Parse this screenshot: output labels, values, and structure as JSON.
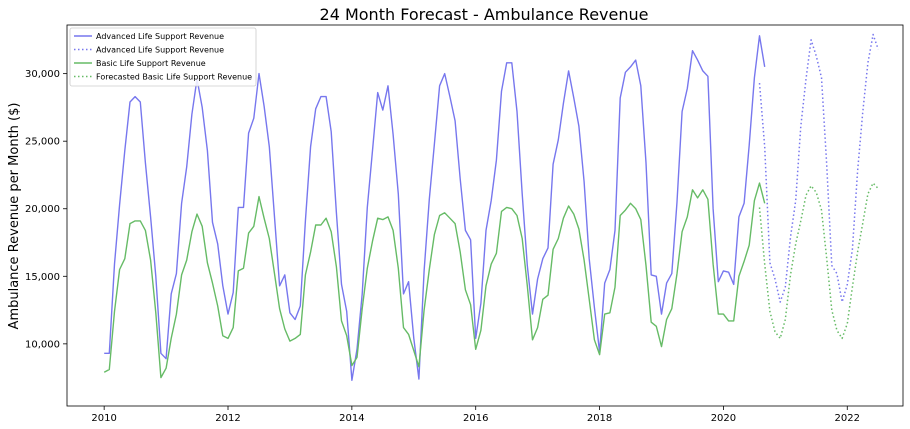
{
  "chart_data": {
    "type": "line",
    "title": "24 Month Forecast - Ambulance Revenue",
    "xlabel": "",
    "ylabel": "Ambulance Revenue per Month ($)",
    "xlim": [
      2009.4,
      2022.9
    ],
    "ylim": [
      5400,
      33600
    ],
    "x_ticks": [
      2010,
      2012,
      2014,
      2016,
      2018,
      2020,
      2022
    ],
    "x_tick_labels": [
      "2010",
      "2012",
      "2014",
      "2016",
      "2018",
      "2020",
      "2022"
    ],
    "y_ticks": [
      10000,
      15000,
      20000,
      25000,
      30000
    ],
    "y_tick_labels": [
      "10,000",
      "15,000",
      "20,000",
      "25,000",
      "30,000"
    ],
    "grid": false,
    "legend_position": "top-left",
    "series": [
      {
        "name": "Advanced Life Support Revenue",
        "color": "#7777ee",
        "style": "solid",
        "x_start": "2010-01",
        "values": [
          9300,
          9300,
          15900,
          20300,
          24300,
          27900,
          28300,
          27900,
          23400,
          19400,
          15000,
          9300,
          8900,
          13700,
          15200,
          20400,
          23100,
          27000,
          29600,
          27500,
          24300,
          19000,
          17400,
          14300,
          12200,
          13800,
          20100,
          20100,
          25600,
          26700,
          30000,
          27600,
          24600,
          19400,
          14300,
          15100,
          12300,
          11800,
          12800,
          19100,
          24600,
          27400,
          28300,
          28300,
          25700,
          19700,
          14400,
          12400,
          7300,
          9600,
          13700,
          20100,
          24300,
          28600,
          27300,
          29100,
          25500,
          21100,
          13700,
          14600,
          10400,
          7400,
          15400,
          20700,
          24800,
          29100,
          30000,
          28300,
          26500,
          22200,
          18400,
          17700,
          10400,
          13000,
          18400,
          20600,
          23600,
          28700,
          30800,
          30800,
          27200,
          21100,
          15800,
          12200,
          14800,
          16300,
          17100,
          23300,
          25100,
          27800,
          30200,
          28200,
          26100,
          22000,
          16300,
          12700,
          9400,
          14500,
          15500,
          18400,
          28200,
          30100,
          30500,
          31000,
          29100,
          23400,
          15100,
          15000,
          12200,
          14500,
          15200,
          20500,
          27200,
          28900,
          31700,
          31000,
          30200,
          29800,
          20000,
          14600,
          15400,
          15300,
          14400,
          19400,
          20400,
          24700,
          29700,
          32800,
          30500
        ]
      },
      {
        "name": "Advanced Life Support Revenue",
        "color": "#7777ee",
        "style": "dotted",
        "x_start": "2020-08",
        "values": [
          29300,
          24600,
          16000,
          14800,
          13100,
          14200,
          17900,
          20600,
          26100,
          29600,
          32500,
          31300,
          29700,
          23400,
          15800,
          15200,
          13100,
          14400,
          17000,
          22800,
          27100,
          30800,
          32900,
          31800
        ]
      },
      {
        "name": "Basic Life Support Revenue",
        "color": "#66bb66",
        "style": "solid",
        "x_start": "2010-01",
        "values": [
          7900,
          8100,
          12400,
          15500,
          16300,
          18900,
          19100,
          19100,
          18400,
          16200,
          12300,
          7500,
          8200,
          10400,
          12200,
          15100,
          16200,
          18300,
          19600,
          18700,
          16000,
          14500,
          12800,
          10600,
          10400,
          11200,
          15400,
          15600,
          18200,
          18700,
          20900,
          19300,
          17800,
          15200,
          12600,
          11100,
          10200,
          10400,
          10700,
          15100,
          16800,
          18800,
          18800,
          19300,
          18300,
          15700,
          11700,
          10600,
          8400,
          9000,
          12600,
          15600,
          17600,
          19300,
          19200,
          19400,
          18400,
          15600,
          11200,
          10700,
          9500,
          8300,
          12500,
          15500,
          18100,
          19500,
          19700,
          19300,
          18900,
          16800,
          14000,
          12900,
          9600,
          11000,
          14300,
          15900,
          16700,
          19800,
          20100,
          20000,
          19500,
          17800,
          14300,
          10300,
          11200,
          13300,
          13600,
          17000,
          17800,
          19300,
          20200,
          19600,
          18500,
          16200,
          13300,
          10300,
          9200,
          12200,
          12300,
          14200,
          19500,
          19900,
          20400,
          20000,
          19200,
          15800,
          11600,
          11300,
          9800,
          11800,
          12600,
          15200,
          18300,
          19400,
          21400,
          20800,
          21400,
          20700,
          15900,
          12200,
          12200,
          11700,
          11700,
          15000,
          16100,
          17300,
          20600,
          21900,
          20400
        ]
      },
      {
        "name": "Forecasted Basic Life Support Revenue",
        "color": "#66bb66",
        "style": "dotted",
        "x_start": "2020-08",
        "values": [
          20100,
          15900,
          12400,
          10900,
          10400,
          11800,
          15100,
          17400,
          19100,
          21000,
          21700,
          21200,
          19900,
          16400,
          12500,
          11000,
          10400,
          11500,
          14200,
          16800,
          18900,
          21100,
          21900,
          21500
        ]
      }
    ]
  }
}
